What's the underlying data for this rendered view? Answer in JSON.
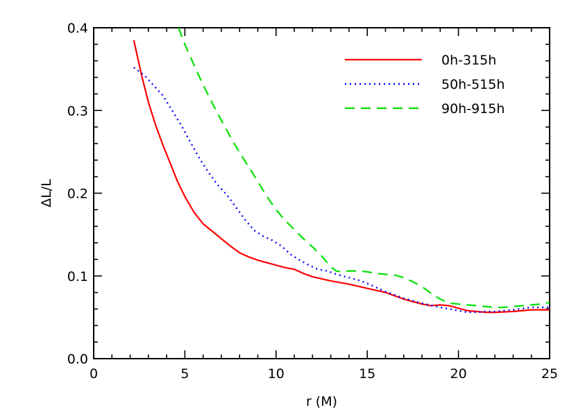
{
  "chart_data": {
    "type": "line",
    "xlabel": "r (M)",
    "ylabel": "ΔL/L",
    "xlim": [
      0,
      25
    ],
    "ylim": [
      0,
      0.4
    ],
    "x_ticks": [
      0,
      5,
      10,
      15,
      20,
      25
    ],
    "y_ticks": [
      0.0,
      0.1,
      0.2,
      0.3,
      0.4
    ],
    "x_tick_labels": [
      "0",
      "5",
      "10",
      "15",
      "20",
      "25"
    ],
    "y_tick_labels": [
      "0.0",
      "0.1",
      "0.2",
      "0.3",
      "0.4"
    ],
    "x_minor_step": 1,
    "y_minor_step": 0.02,
    "grid": false,
    "legend_position": "top-right",
    "series": [
      {
        "name": "0h-315h",
        "color": "#ff0000",
        "dash": "solid",
        "points": [
          [
            2.2,
            0.385
          ],
          [
            2.6,
            0.345
          ],
          [
            3.0,
            0.31
          ],
          [
            3.4,
            0.282
          ],
          [
            3.8,
            0.258
          ],
          [
            4.2,
            0.236
          ],
          [
            4.6,
            0.214
          ],
          [
            5.0,
            0.196
          ],
          [
            5.5,
            0.177
          ],
          [
            6.0,
            0.163
          ],
          [
            6.5,
            0.154
          ],
          [
            7.0,
            0.145
          ],
          [
            7.5,
            0.136
          ],
          [
            8.0,
            0.128
          ],
          [
            8.5,
            0.123
          ],
          [
            9.0,
            0.119
          ],
          [
            9.5,
            0.116
          ],
          [
            10.0,
            0.113
          ],
          [
            10.5,
            0.11
          ],
          [
            11.0,
            0.108
          ],
          [
            11.5,
            0.103
          ],
          [
            12.0,
            0.099
          ],
          [
            13.0,
            0.094
          ],
          [
            14.0,
            0.09
          ],
          [
            15.0,
            0.085
          ],
          [
            16.0,
            0.08
          ],
          [
            17.0,
            0.072
          ],
          [
            18.0,
            0.066
          ],
          [
            18.5,
            0.064
          ],
          [
            19.0,
            0.065
          ],
          [
            19.5,
            0.064
          ],
          [
            20.0,
            0.061
          ],
          [
            20.5,
            0.058
          ],
          [
            21.0,
            0.057
          ],
          [
            21.5,
            0.056
          ],
          [
            22.0,
            0.056
          ],
          [
            23.0,
            0.057
          ],
          [
            24.0,
            0.059
          ],
          [
            25.0,
            0.059
          ]
        ]
      },
      {
        "name": "50h-515h",
        "color": "#0000ff",
        "dash": "dotted",
        "points": [
          [
            2.2,
            0.352
          ],
          [
            2.8,
            0.342
          ],
          [
            3.3,
            0.33
          ],
          [
            3.8,
            0.318
          ],
          [
            4.3,
            0.3
          ],
          [
            4.8,
            0.282
          ],
          [
            5.3,
            0.262
          ],
          [
            5.8,
            0.242
          ],
          [
            6.3,
            0.225
          ],
          [
            6.8,
            0.21
          ],
          [
            7.3,
            0.198
          ],
          [
            7.8,
            0.183
          ],
          [
            8.3,
            0.168
          ],
          [
            8.8,
            0.155
          ],
          [
            9.3,
            0.148
          ],
          [
            9.8,
            0.143
          ],
          [
            10.3,
            0.136
          ],
          [
            10.8,
            0.126
          ],
          [
            11.3,
            0.119
          ],
          [
            11.8,
            0.113
          ],
          [
            12.3,
            0.108
          ],
          [
            12.8,
            0.106
          ],
          [
            13.3,
            0.102
          ],
          [
            14.0,
            0.098
          ],
          [
            14.5,
            0.095
          ],
          [
            15.0,
            0.091
          ],
          [
            15.5,
            0.086
          ],
          [
            16.0,
            0.081
          ],
          [
            16.5,
            0.077
          ],
          [
            17.0,
            0.073
          ],
          [
            17.5,
            0.07
          ],
          [
            18.0,
            0.067
          ],
          [
            19.0,
            0.062
          ],
          [
            20.0,
            0.058
          ],
          [
            20.5,
            0.056
          ],
          [
            21.0,
            0.056
          ],
          [
            21.5,
            0.057
          ],
          [
            22.0,
            0.057
          ],
          [
            23.0,
            0.059
          ],
          [
            24.0,
            0.062
          ],
          [
            25.0,
            0.062
          ]
        ]
      },
      {
        "name": "90h-915h",
        "color": "#00e000",
        "dash": "dashed",
        "points": [
          [
            4.65,
            0.4
          ],
          [
            5.0,
            0.38
          ],
          [
            5.5,
            0.355
          ],
          [
            6.0,
            0.331
          ],
          [
            6.5,
            0.309
          ],
          [
            7.0,
            0.288
          ],
          [
            7.5,
            0.268
          ],
          [
            8.0,
            0.249
          ],
          [
            8.5,
            0.232
          ],
          [
            9.0,
            0.214
          ],
          [
            9.5,
            0.196
          ],
          [
            10.0,
            0.18
          ],
          [
            10.5,
            0.167
          ],
          [
            11.0,
            0.156
          ],
          [
            11.5,
            0.145
          ],
          [
            12.0,
            0.135
          ],
          [
            12.5,
            0.124
          ],
          [
            13.0,
            0.111
          ],
          [
            13.3,
            0.106
          ],
          [
            13.6,
            0.105
          ],
          [
            14.0,
            0.106
          ],
          [
            14.5,
            0.106
          ],
          [
            15.0,
            0.105
          ],
          [
            15.5,
            0.103
          ],
          [
            16.0,
            0.102
          ],
          [
            16.5,
            0.101
          ],
          [
            17.0,
            0.098
          ],
          [
            17.5,
            0.093
          ],
          [
            18.0,
            0.087
          ],
          [
            18.5,
            0.079
          ],
          [
            19.0,
            0.072
          ],
          [
            19.5,
            0.067
          ],
          [
            20.0,
            0.066
          ],
          [
            20.5,
            0.065
          ],
          [
            21.0,
            0.064
          ],
          [
            21.5,
            0.063
          ],
          [
            22.0,
            0.062
          ],
          [
            22.5,
            0.062
          ],
          [
            23.0,
            0.063
          ],
          [
            23.5,
            0.064
          ],
          [
            24.0,
            0.065
          ],
          [
            24.5,
            0.066
          ],
          [
            25.0,
            0.068
          ]
        ]
      }
    ]
  }
}
